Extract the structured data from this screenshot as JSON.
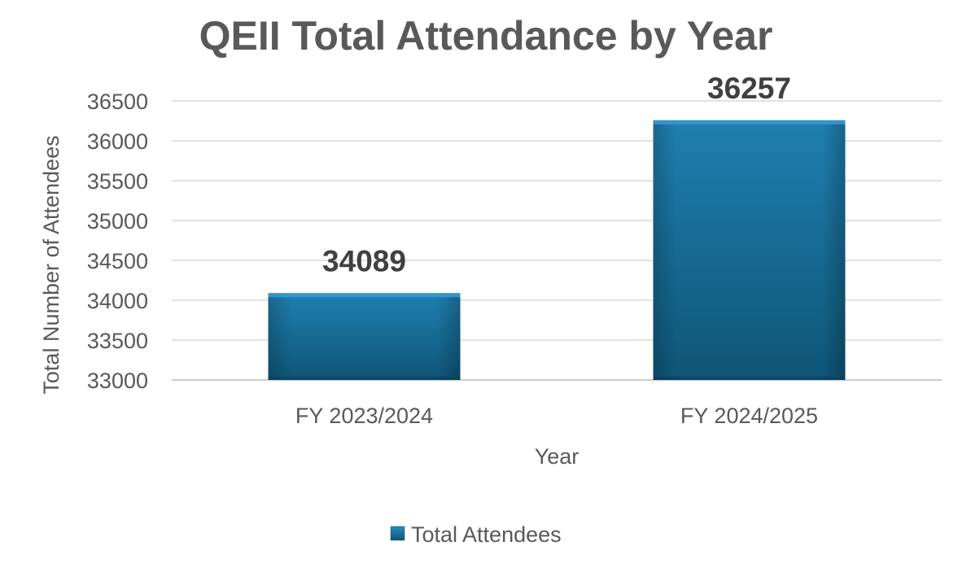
{
  "chart_data": {
    "type": "bar",
    "title": "QEII Total Attendance by Year",
    "xlabel": "Year",
    "ylabel": "Total Number of Attendees",
    "categories": [
      "FY 2023/2024",
      "FY 2024/2025"
    ],
    "series": [
      {
        "name": "Total Attendees",
        "values": [
          34089,
          36257
        ]
      }
    ],
    "data_labels": [
      "34089",
      "36257"
    ],
    "ylim": [
      33000,
      36500
    ],
    "yticks": [
      33000,
      33500,
      34000,
      34500,
      35000,
      35500,
      36000,
      36500
    ],
    "ytick_labels": [
      "33000",
      "33500",
      "34000",
      "34500",
      "35000",
      "35500",
      "36000",
      "36500"
    ],
    "grid": true,
    "legend": "bottom",
    "colors": {
      "bar": "#1a6f9a",
      "bar_light": "#2a8cc0",
      "bar_dark": "#0f4f70",
      "grid": "#d9d9d9",
      "text": "#595959"
    }
  }
}
